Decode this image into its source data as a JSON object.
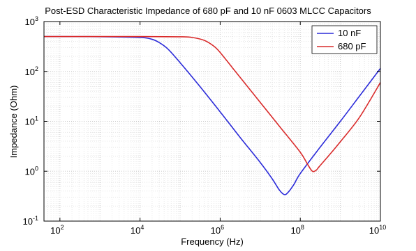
{
  "chart_data": {
    "type": "line",
    "title": "Post-ESD Characteristic Impedance of 680 pF and 10 nF 0603 MLCC Capacitors",
    "xlabel": "Frequency (Hz)",
    "ylabel": "Impedance (Ohm)",
    "x_scale": "log",
    "y_scale": "log",
    "xlim": [
      40,
      10000000000
    ],
    "ylim": [
      0.1,
      1000
    ],
    "x_ticks": [
      {
        "base": "10",
        "exp": "2",
        "value": 100
      },
      {
        "base": "10",
        "exp": "4",
        "value": 10000
      },
      {
        "base": "10",
        "exp": "6",
        "value": 1000000
      },
      {
        "base": "10",
        "exp": "8",
        "value": 100000000
      },
      {
        "base": "10",
        "exp": "10",
        "value": 10000000000
      }
    ],
    "y_ticks": [
      {
        "base": "10",
        "exp": "-1",
        "value": 0.1
      },
      {
        "base": "10",
        "exp": "0",
        "value": 1
      },
      {
        "base": "10",
        "exp": "1",
        "value": 10
      },
      {
        "base": "10",
        "exp": "2",
        "value": 100
      },
      {
        "base": "10",
        "exp": "3",
        "value": 1000
      }
    ],
    "grid": true,
    "legend_position": "top-right",
    "series": [
      {
        "name": "10 nF",
        "color": "#2b2bd9",
        "x": [
          40,
          1000,
          10000,
          20000,
          30000,
          50000,
          100000,
          300000,
          1000000,
          3000000,
          10000000,
          20000000,
          30000000,
          40000000,
          50000000,
          70000000,
          100000000,
          300000000,
          1000000000,
          3000000000,
          10000000000
        ],
        "y": [
          500,
          497,
          480,
          440,
          380,
          280,
          150,
          52,
          15.5,
          5.0,
          1.5,
          0.7,
          0.42,
          0.34,
          0.38,
          0.55,
          0.9,
          2.9,
          10,
          32,
          115
        ]
      },
      {
        "name": "680 pF",
        "color": "#d92b2b",
        "x": [
          40,
          10000,
          100000,
          200000,
          400000,
          700000,
          1000000,
          2000000,
          5000000,
          10000000,
          30000000,
          100000000,
          150000000,
          200000000,
          250000000,
          300000000,
          500000000,
          1000000000,
          3000000000,
          10000000000
        ],
        "y": [
          500,
          500,
          495,
          480,
          420,
          320,
          240,
          120,
          48,
          24,
          8.0,
          2.4,
          1.4,
          1.0,
          1.05,
          1.25,
          2.0,
          3.9,
          12,
          60
        ]
      }
    ]
  }
}
